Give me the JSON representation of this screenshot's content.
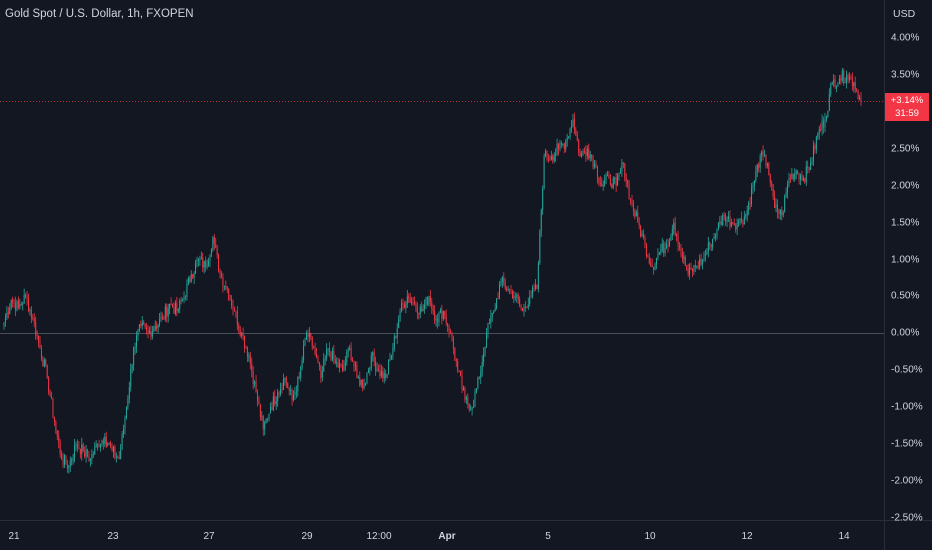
{
  "header": {
    "title": "Gold Spot / U.S. Dollar, 1h, FXOPEN",
    "currency": "USD"
  },
  "price_label": {
    "change": "+3.14%",
    "countdown": "31:59"
  },
  "chart_data": {
    "type": "candlestick",
    "title": "Gold Spot / U.S. Dollar, 1h, FXOPEN",
    "ylabel": "USD",
    "y_scale": "percent",
    "ylim": [
      -2.6,
      4.15
    ],
    "yticks": [
      "4.00%",
      "3.50%",
      "3.00%",
      "2.50%",
      "2.00%",
      "1.50%",
      "1.00%",
      "0.50%",
      "0.00%",
      "-0.50%",
      "-1.00%",
      "-1.50%",
      "-2.00%",
      "-2.50%"
    ],
    "ytick_values": [
      4.0,
      3.5,
      3.0,
      2.5,
      2.0,
      1.5,
      1.0,
      0.5,
      0.0,
      -0.5,
      -1.0,
      -1.5,
      -2.0,
      -2.5
    ],
    "xticks": [
      {
        "label": "21",
        "bold": false
      },
      {
        "label": "23",
        "bold": false
      },
      {
        "label": "27",
        "bold": false
      },
      {
        "label": "29",
        "bold": false
      },
      {
        "label": "12:00",
        "bold": false
      },
      {
        "label": "Apr",
        "bold": true
      },
      {
        "label": "5",
        "bold": false
      },
      {
        "label": "10",
        "bold": false
      },
      {
        "label": "12",
        "bold": false
      },
      {
        "label": "14",
        "bold": false
      }
    ],
    "last_value": 3.14,
    "up_color": "#26a69a",
    "down_color": "#f23645",
    "series": [
      {
        "values": [
          0.15,
          0.45,
          0.35,
          0.5,
          0.2,
          -0.2,
          -0.6,
          -1.2,
          -1.7,
          -1.8,
          -1.5,
          -1.6,
          -1.7,
          -1.5,
          -1.4,
          -1.6,
          -1.7,
          -1.0,
          -0.2,
          0.1,
          0.0,
          0.1,
          0.2,
          0.4,
          0.3,
          0.5,
          0.8,
          1.0,
          0.9,
          1.3,
          0.8,
          0.6,
          0.3,
          0.0,
          -0.3,
          -0.8,
          -1.3,
          -1.0,
          -0.8,
          -0.6,
          -0.9,
          -0.6,
          0.0,
          -0.2,
          -0.6,
          -0.2,
          -0.4,
          -0.5,
          -0.2,
          -0.6,
          -0.7,
          -0.3,
          -0.5,
          -0.6,
          -0.2,
          0.3,
          0.5,
          0.4,
          0.3,
          0.5,
          0.2,
          0.3,
          0.0,
          -0.5,
          -0.9,
          -1.0,
          -0.6,
          0.0,
          0.3,
          0.7,
          0.6,
          0.5,
          0.3,
          0.5,
          0.6,
          2.4,
          2.4,
          2.5,
          2.6,
          2.9,
          2.4,
          2.5,
          2.3,
          2.0,
          2.1,
          2.0,
          2.3,
          1.8,
          1.5,
          1.2,
          0.9,
          1.1,
          1.2,
          1.5,
          1.1,
          0.8,
          0.9,
          1.0,
          1.2,
          1.4,
          1.6,
          1.5,
          1.5,
          1.6,
          2.0,
          2.4,
          2.3,
          1.7,
          1.6,
          2.1,
          2.2,
          2.1,
          2.3,
          2.7,
          2.9,
          3.4,
          3.45,
          3.5,
          3.4,
          3.14
        ]
      }
    ]
  }
}
